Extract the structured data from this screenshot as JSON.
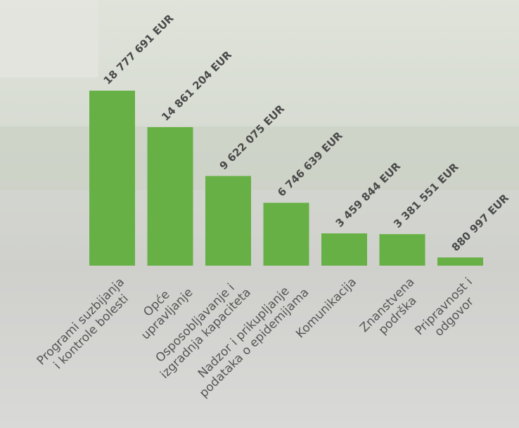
{
  "chart_data": {
    "type": "bar",
    "categories": [
      [
        "Programi suzbijanja",
        "i kontrole bolesti"
      ],
      [
        "Opće",
        "upravljanje"
      ],
      [
        "Osposobljavanje i",
        "izgradnja kapaciteta"
      ],
      [
        "Nadzor i prikupljanje",
        "podataka o epidemijama"
      ],
      [
        "Komunikacija"
      ],
      [
        "Znanstvena",
        "podrška"
      ],
      [
        "Pripravnost i",
        "odgovor"
      ]
    ],
    "values": [
      18777691,
      14861204,
      9622075,
      6746639,
      3459844,
      3381551,
      880997
    ],
    "value_labels": [
      "18 777 691 EUR",
      "14 861 204 EUR",
      "9 622 075 EUR",
      "6 746 639 EUR",
      "3 459 844 EUR",
      "3 381 551 EUR",
      "880 997 EUR"
    ],
    "color": "#67b045"
  }
}
